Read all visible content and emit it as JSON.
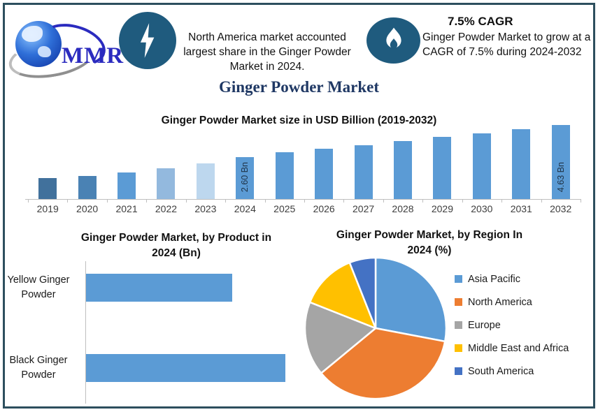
{
  "page": {
    "title": "Ginger Powder Market",
    "border_color": "#2d4f5e",
    "background": "#ffffff",
    "title_color": "#1f3864"
  },
  "header": {
    "logo": {
      "name": "MMR",
      "icon": "globe-icon",
      "text_color": "#2b2bbf"
    },
    "highlight_left": {
      "icon": "lightning-icon",
      "icon_bg": "#1f5b7e",
      "text": "North America market accounted largest share in the Ginger Powder Market in 2024."
    },
    "highlight_right": {
      "icon": "flame-icon",
      "icon_bg": "#1f5b7e",
      "heading": "7.5% CAGR",
      "text": "Ginger Powder Market to grow at a CAGR of 7.5% during 2024-2032"
    }
  },
  "chart_data": [
    {
      "type": "bar",
      "title": "Ginger Powder Market size in USD Billion (2019-2032)",
      "categories": [
        "2019",
        "2020",
        "2021",
        "2022",
        "2023",
        "2024",
        "2025",
        "2026",
        "2027",
        "2028",
        "2029",
        "2030",
        "2031",
        "2032"
      ],
      "values": [
        1.3,
        1.45,
        1.65,
        1.9,
        2.2,
        2.6,
        2.9,
        3.15,
        3.35,
        3.6,
        3.85,
        4.1,
        4.35,
        4.63
      ],
      "bar_colors": [
        "#41719c",
        "#4a82b4",
        "#5b9bd5",
        "#93b9de",
        "#bdd7ee",
        "#5b9bd5",
        "#5b9bd5",
        "#5b9bd5",
        "#5b9bd5",
        "#5b9bd5",
        "#5b9bd5",
        "#5b9bd5",
        "#5b9bd5",
        "#5b9bd5"
      ],
      "data_labels": {
        "2024": "2.60 Bn",
        "2032": "4.63 Bn"
      },
      "ylabel": "USD Billion",
      "ylim": [
        0,
        5
      ],
      "grid": false,
      "legend_position": "none"
    },
    {
      "type": "bar",
      "orientation": "horizontal",
      "title": "Ginger Powder Market, by Product in 2024 (Bn)",
      "categories": [
        "Yellow Ginger Powder",
        "Black Ginger Powder"
      ],
      "values": [
        1.1,
        1.5
      ],
      "bar_color": "#5b9bd5",
      "xlim": [
        0,
        2
      ],
      "grid": false,
      "legend_position": "none"
    },
    {
      "type": "pie",
      "title": "Ginger Powder Market, by Region In 2024 (%)",
      "labels": [
        "Asia Pacific",
        "North America",
        "Europe",
        "Middle East and Africa",
        "South America"
      ],
      "values": [
        28,
        36,
        17,
        13,
        6
      ],
      "colors": [
        "#5b9bd5",
        "#ed7d31",
        "#a5a5a5",
        "#ffc000",
        "#4472c4"
      ],
      "start_angle_deg": 0,
      "direction": "clockwise",
      "legend_position": "right"
    }
  ]
}
